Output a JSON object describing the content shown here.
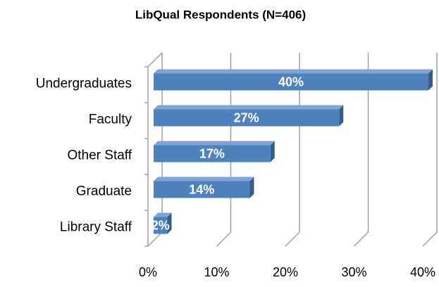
{
  "chart_data": {
    "type": "bar",
    "orientation": "horizontal",
    "title": "LibQual Respondents (N=406)",
    "categories": [
      "Undergraduates",
      "Faculty",
      "Other Staff",
      "Graduate",
      "Library Staff"
    ],
    "values": [
      40,
      27,
      17,
      14,
      2
    ],
    "value_labels": [
      "40%",
      "27%",
      "17%",
      "14%",
      "2%"
    ],
    "color": "#4f81bd",
    "xlim": [
      0,
      40
    ],
    "xticks": [
      {
        "value": 0,
        "label": "0%"
      },
      {
        "value": 10,
        "label": "10%"
      },
      {
        "value": 20,
        "label": "20%"
      },
      {
        "value": 30,
        "label": "30%"
      },
      {
        "value": 40,
        "label": "40%"
      }
    ],
    "grid": true
  }
}
